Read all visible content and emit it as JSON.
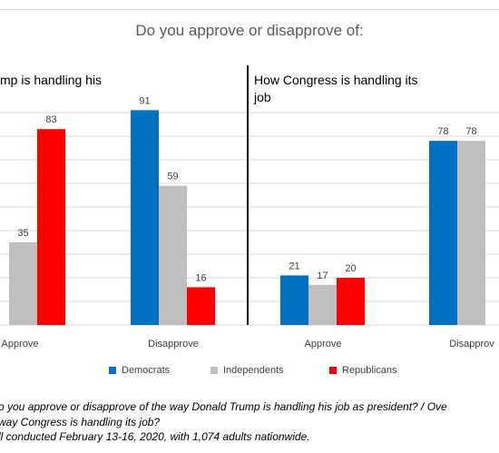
{
  "chart_data": {
    "type": "bar",
    "title": "Do you approve or disapprove of:",
    "panels": [
      {
        "title": "mp is handling his",
        "categories": [
          "Approve",
          "Disapprove"
        ],
        "series": [
          {
            "name": "Democrats",
            "values": [
              null,
              91
            ]
          },
          {
            "name": "Independents",
            "values": [
              35,
              59
            ]
          },
          {
            "name": "Republicans",
            "values": [
              83,
              16
            ]
          }
        ]
      },
      {
        "title": "How Congress is handling its job",
        "categories": [
          "Approve",
          "Disapprov"
        ],
        "series": [
          {
            "name": "Democrats",
            "values": [
              21,
              78
            ]
          },
          {
            "name": "Independents",
            "values": [
              17,
              78
            ]
          },
          {
            "name": "Republicans",
            "values": [
              20,
              null
            ]
          }
        ]
      }
    ],
    "ylim": [
      0,
      100
    ],
    "grid": true,
    "legend_position": "bottom",
    "legend": [
      "Democrats",
      "Independents",
      "Republicans"
    ],
    "colors": {
      "Democrats": "#0070C0",
      "Independents": "#BFBFBF",
      "Republicans": "#FF0000"
    }
  },
  "footnote": [
    "o you approve or disapprove of the way Donald Trump is handling his job as president? / Ove",
    "way Congress is handling its job?",
    "ll conducted February 13-16, 2020, with 1,074 adults nationwide."
  ]
}
